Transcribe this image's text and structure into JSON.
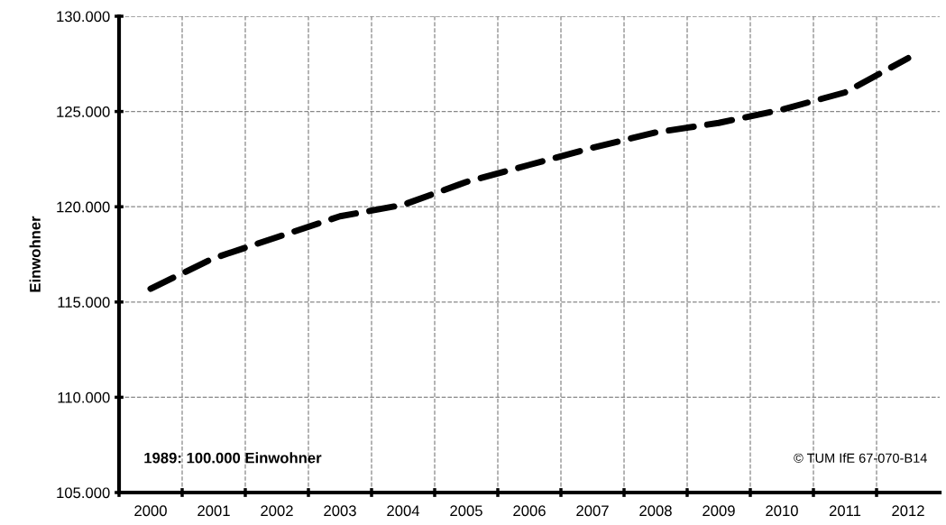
{
  "chart_data": {
    "type": "line",
    "ylabel": "Einwohner",
    "categories": [
      "2000",
      "2001",
      "2002",
      "2003",
      "2004",
      "2005",
      "2006",
      "2007",
      "2008",
      "2009",
      "2010",
      "2011",
      "2012"
    ],
    "series": [
      {
        "color": "#000000",
        "values": [
          115700,
          117300,
          118400,
          119500,
          120100,
          121300,
          122200,
          123100,
          123900,
          124400,
          125100,
          126000,
          127800
        ]
      }
    ],
    "ylim": [
      105000,
      130000
    ],
    "yticks": [
      {
        "value": 105000,
        "label": "105.000"
      },
      {
        "value": 110000,
        "label": "110.000"
      },
      {
        "value": 115000,
        "label": "115.000"
      },
      {
        "value": 120000,
        "label": "120.000"
      },
      {
        "value": 125000,
        "label": "125.000"
      },
      {
        "value": 130000,
        "label": "130.000"
      }
    ],
    "grid": true,
    "line_style": "dashed",
    "marker": "none",
    "annotations": [
      "1989: 100.000 Einwohner",
      "© TUM IfE 67-070-B14"
    ]
  }
}
